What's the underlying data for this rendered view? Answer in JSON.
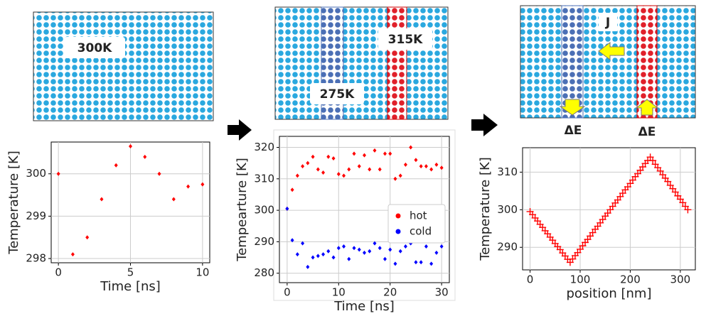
{
  "diagrams": [
    {
      "labels": [
        "300K"
      ]
    },
    {
      "labels": [
        "275K",
        "315K"
      ]
    },
    {
      "labels": [
        "J",
        "ΔE",
        "ΔE"
      ]
    }
  ],
  "chart_data": [
    {
      "type": "scatter",
      "xlabel": "Time [ns]",
      "ylabel": "Temperature [K]",
      "xlim": [
        -0.5,
        10.5
      ],
      "ylim": [
        297.9,
        300.75
      ],
      "xticks": [
        0,
        5,
        10
      ],
      "yticks": [
        298,
        299,
        300
      ],
      "grid": true,
      "x": [
        0,
        1,
        2,
        3,
        4,
        5,
        6,
        7,
        8,
        9,
        10
      ],
      "series": [
        {
          "color": "#ff0000",
          "values": [
            300.0,
            298.1,
            298.5,
            299.4,
            300.2,
            300.65,
            300.4,
            300.0,
            299.4,
            299.7,
            299.75
          ]
        }
      ]
    },
    {
      "type": "scatter",
      "xlabel": "Time [ns]",
      "ylabel": "Tempearture [K]",
      "xlim": [
        -1.5,
        31.5
      ],
      "ylim": [
        277,
        323.5
      ],
      "xticks": [
        0,
        10,
        20,
        30
      ],
      "yticks": [
        280,
        290,
        300,
        310,
        320
      ],
      "grid": true,
      "legend": "center right",
      "x": [
        0,
        1,
        2,
        3,
        4,
        5,
        6,
        7,
        8,
        9,
        10,
        11,
        12,
        13,
        14,
        15,
        16,
        17,
        18,
        19,
        20,
        21,
        22,
        23,
        24,
        25,
        26,
        27,
        28,
        29,
        30
      ],
      "series": [
        {
          "name": "hot",
          "color": "#ff0000",
          "values": [
            300.5,
            306.5,
            311,
            314,
            315,
            317,
            313,
            312,
            317,
            316.5,
            311.5,
            311,
            313,
            318,
            314,
            317.5,
            313,
            319,
            313,
            318,
            318,
            310,
            311,
            314.5,
            320,
            316,
            314,
            314,
            313,
            314.5,
            313.5
          ]
        },
        {
          "name": "cold",
          "color": "#0000ff",
          "values": [
            300.5,
            290.5,
            286,
            289.5,
            282,
            285,
            285.5,
            286,
            287,
            285,
            288,
            288.5,
            284.5,
            288,
            287.5,
            286.5,
            287,
            289.5,
            288,
            284.5,
            287.5,
            283,
            287,
            288.5,
            289.5,
            283.5,
            283.5,
            288.5,
            283,
            286.5,
            288.5
          ]
        }
      ]
    },
    {
      "type": "scatter",
      "marker": "+",
      "xlabel": "position [nm]",
      "ylabel": "Temperature [K]",
      "xlim": [
        -15,
        330
      ],
      "ylim": [
        284,
        316.5
      ],
      "xticks": [
        0,
        100,
        200,
        300
      ],
      "yticks": [
        290,
        300,
        310
      ],
      "grid": true,
      "x": [
        0,
        5,
        10,
        15,
        20,
        25,
        30,
        35,
        40,
        45,
        50,
        55,
        60,
        65,
        70,
        75,
        80,
        85,
        90,
        95,
        100,
        105,
        110,
        115,
        120,
        125,
        130,
        135,
        140,
        145,
        150,
        155,
        160,
        165,
        170,
        175,
        180,
        185,
        190,
        195,
        200,
        205,
        210,
        215,
        220,
        225,
        230,
        235,
        240,
        245,
        250,
        255,
        260,
        265,
        270,
        275,
        280,
        285,
        290,
        295,
        300,
        305,
        310,
        315
      ],
      "series": [
        {
          "color": "#ff0000",
          "values": [
            299.5,
            298.7,
            297.8,
            297,
            296.1,
            295.3,
            294.4,
            293.6,
            292.7,
            291.9,
            291,
            290.2,
            289.4,
            288.5,
            287.7,
            286.8,
            286,
            286.9,
            287.8,
            288.6,
            289.5,
            290.4,
            291.3,
            292.1,
            293,
            293.9,
            294.8,
            295.6,
            296.5,
            297.4,
            298.3,
            299.1,
            300,
            300.9,
            301.8,
            302.6,
            303.5,
            304.4,
            305.3,
            306.1,
            307,
            307.9,
            308.8,
            309.6,
            310.5,
            311.4,
            312.3,
            313.1,
            314,
            313.1,
            312.1,
            311.2,
            310.3,
            309.3,
            308.4,
            307.5,
            306.5,
            305.6,
            304.7,
            303.7,
            302.8,
            301.9,
            300.9,
            300
          ]
        }
      ]
    }
  ]
}
